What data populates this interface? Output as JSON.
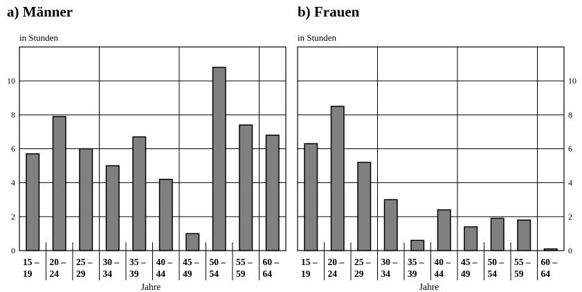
{
  "chart_data": [
    {
      "type": "bar",
      "title": "a) Männer",
      "ylabel": "in Stunden",
      "xlabel": "Jahre",
      "categories": [
        "15 – 19",
        "20 – 24",
        "25 – 29",
        "30 – 34",
        "35 – 39",
        "40 – 44",
        "45 – 49",
        "50 – 54",
        "55 – 59",
        "60 – 64"
      ],
      "category_lines": [
        [
          "15 –",
          "19"
        ],
        [
          "20 –",
          "24"
        ],
        [
          "25 –",
          "29"
        ],
        [
          "30 –",
          "34"
        ],
        [
          "35 –",
          "39"
        ],
        [
          "40 –",
          "44"
        ],
        [
          "45 –",
          "49"
        ],
        [
          "50 –",
          "54"
        ],
        [
          "55 –",
          "59"
        ],
        [
          "60 –",
          "64"
        ]
      ],
      "values": [
        5.7,
        7.9,
        6.0,
        5.0,
        6.7,
        4.2,
        1.0,
        10.8,
        7.4,
        6.8
      ],
      "ylim": [
        0,
        12
      ],
      "yticks": [
        0,
        2,
        4,
        6,
        8,
        10
      ],
      "ytick_side": "left",
      "grid": true,
      "bar_color": "#808080"
    },
    {
      "type": "bar",
      "title": "b) Frauen",
      "ylabel": "in Stunden",
      "xlabel": "Jahre",
      "categories": [
        "15 – 19",
        "20 – 24",
        "25 – 29",
        "30 – 34",
        "35 – 39",
        "40 – 44",
        "45 – 49",
        "50 – 54",
        "55 – 59",
        "60 – 64"
      ],
      "category_lines": [
        [
          "15 –",
          "19"
        ],
        [
          "20 –",
          "24"
        ],
        [
          "25 –",
          "29"
        ],
        [
          "30 –",
          "34"
        ],
        [
          "35 –",
          "39"
        ],
        [
          "40 –",
          "44"
        ],
        [
          "45 –",
          "49"
        ],
        [
          "50 –",
          "54"
        ],
        [
          "55 –",
          "59"
        ],
        [
          "60 –",
          "64"
        ]
      ],
      "values": [
        6.3,
        8.5,
        5.2,
        3.0,
        0.6,
        2.4,
        1.4,
        1.9,
        1.8,
        0.1
      ],
      "ylim": [
        0,
        12
      ],
      "yticks": [
        0,
        2,
        4,
        6,
        8,
        10
      ],
      "ytick_side": "right",
      "grid": true,
      "bar_color": "#808080"
    }
  ]
}
